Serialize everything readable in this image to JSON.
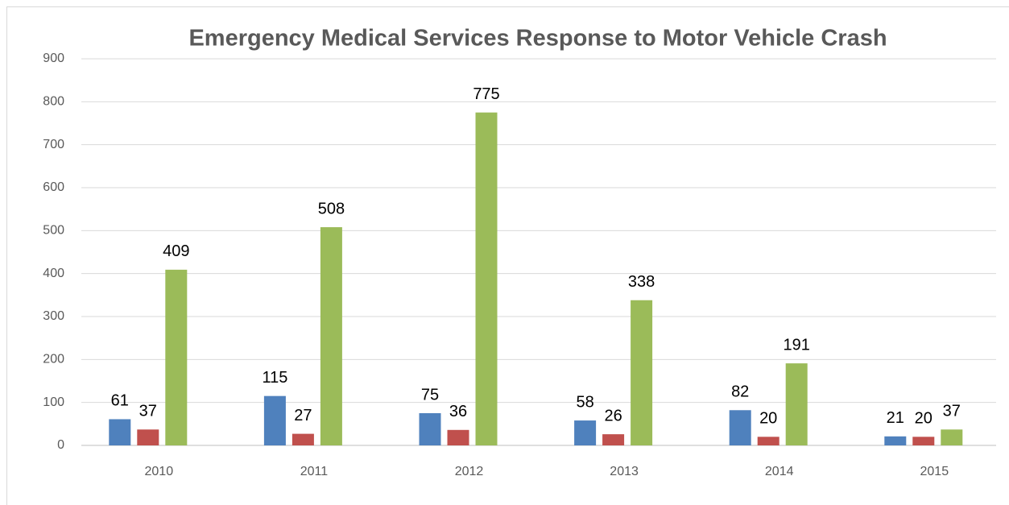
{
  "chart_data": {
    "type": "bar",
    "title": "Emergency Medical Services Response to Motor Vehicle Crash",
    "categories": [
      "2010",
      "2011",
      "2012",
      "2013",
      "2014",
      "2015"
    ],
    "series": [
      {
        "color": "#4f81bd",
        "values": [
          61,
          115,
          75,
          58,
          82,
          21
        ]
      },
      {
        "color": "#c0504d",
        "values": [
          37,
          27,
          36,
          26,
          20,
          20
        ]
      },
      {
        "color": "#9bbb59",
        "values": [
          409,
          508,
          775,
          338,
          191,
          37
        ]
      }
    ],
    "ylim": [
      0,
      900
    ],
    "yticks": [
      0,
      100,
      200,
      300,
      400,
      500,
      600,
      700,
      800,
      900
    ],
    "grid": true,
    "data_labels": true
  }
}
